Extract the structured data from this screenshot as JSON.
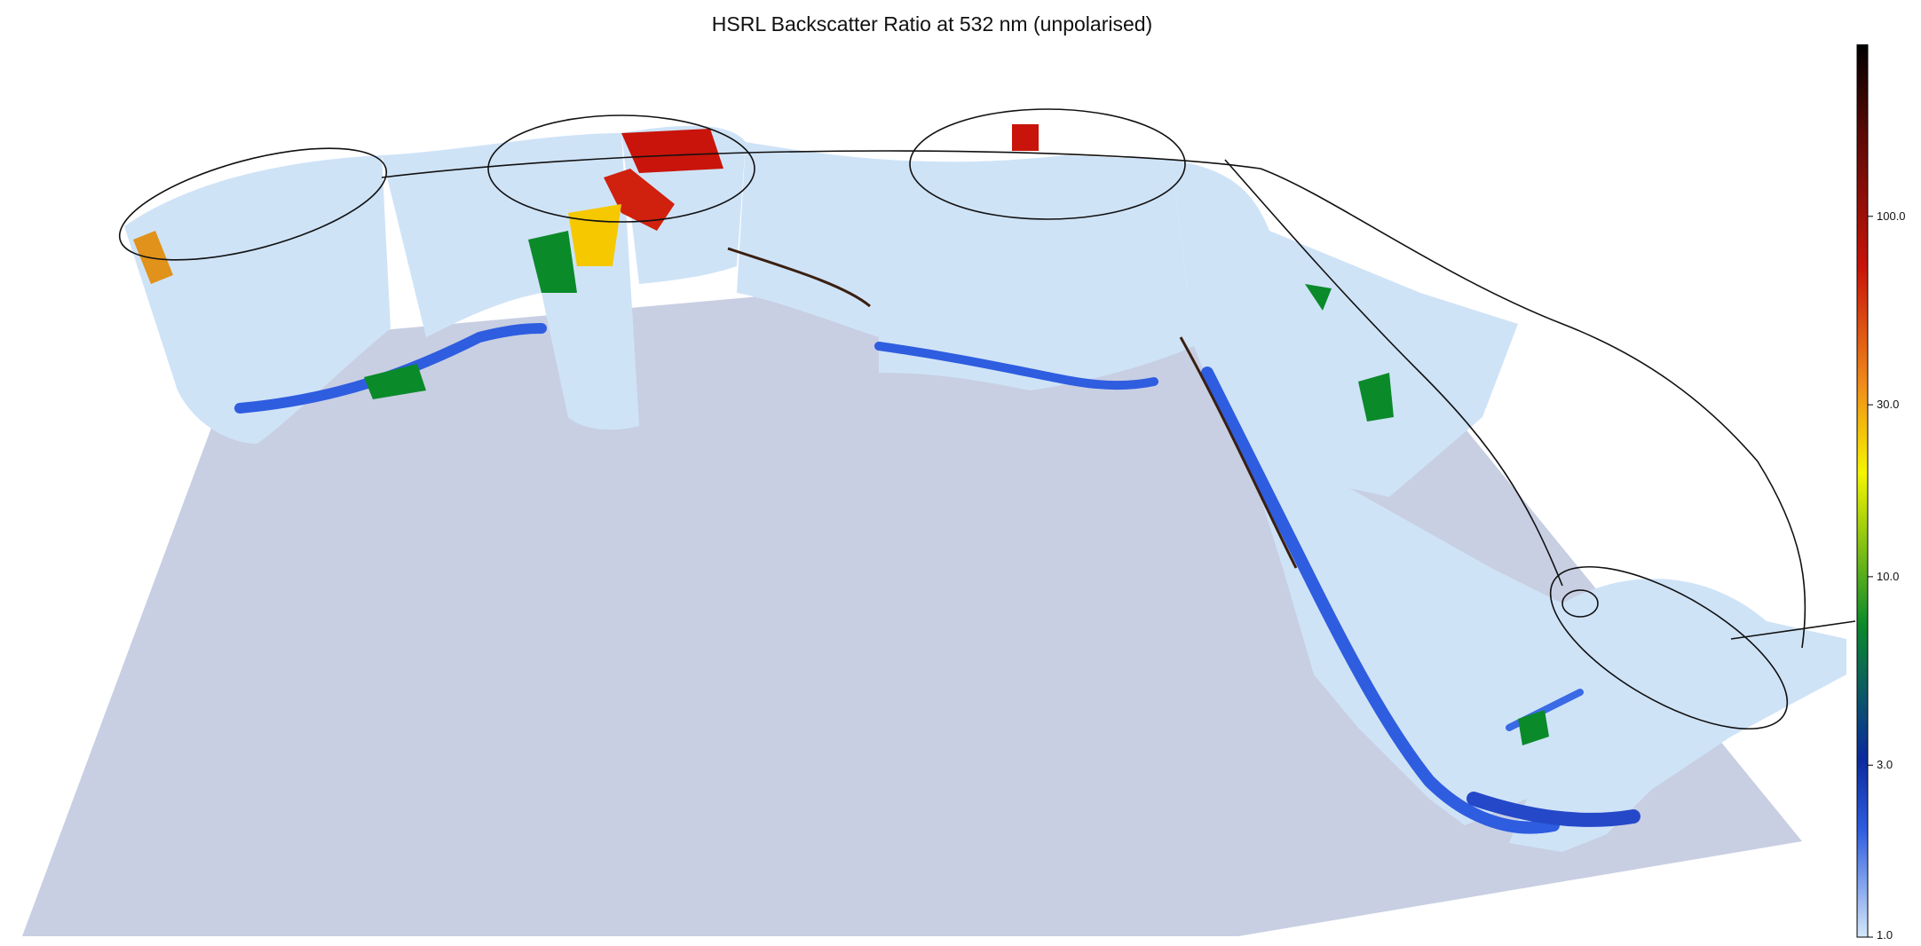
{
  "title": "HSRL Backscatter Ratio at 532 nm (unpolarised)",
  "chart_data": {
    "type": "heatmap",
    "title": "HSRL Backscatter Ratio at 532 nm (unpolarised)",
    "view": "3D perspective curtain along flight track",
    "colorbar": {
      "scale": "log",
      "range": [
        1.0,
        300.0
      ],
      "ticks": [
        1.0,
        3.0,
        10.0,
        30.0,
        100.0
      ],
      "tick_labels": [
        "1.0",
        "3.0",
        "10.0",
        "30.0",
        "100.0"
      ],
      "colormap": [
        "#d4e8fa",
        "#1f4fd6",
        "#0b2a9e",
        "#0b8a2a",
        "#f5f500",
        "#f08a1a",
        "#c8140a",
        "#5a0a05",
        "#000000"
      ]
    },
    "colors": {
      "ground_plane": "#c8cfe3",
      "curtain_background": "#cfe3f7",
      "aerosol_layer": "#2f5de0",
      "flight_track": "#111111"
    }
  }
}
